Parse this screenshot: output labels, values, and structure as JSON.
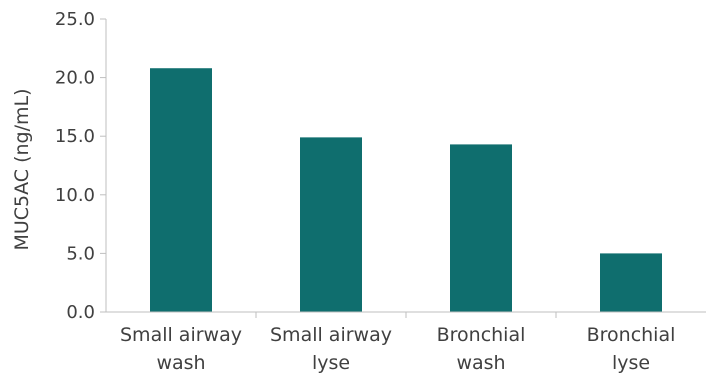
{
  "chart_data": {
    "type": "bar",
    "title": "",
    "xlabel": "",
    "ylabel": "MUC5AC (ng/mL)",
    "ylim": [
      0,
      25
    ],
    "yticks": [
      "0.0",
      "5.0",
      "10.0",
      "15.0",
      "20.0",
      "25.0"
    ],
    "grid": false,
    "legend": "none",
    "bar_color": "#0f6e6e",
    "categories": [
      [
        "Small airway",
        "wash"
      ],
      [
        "Small airway",
        "lyse"
      ],
      [
        "Bronchial",
        "wash"
      ],
      [
        "Bronchial",
        "lyse"
      ]
    ],
    "values": [
      20.8,
      14.9,
      14.3,
      5.0
    ]
  }
}
